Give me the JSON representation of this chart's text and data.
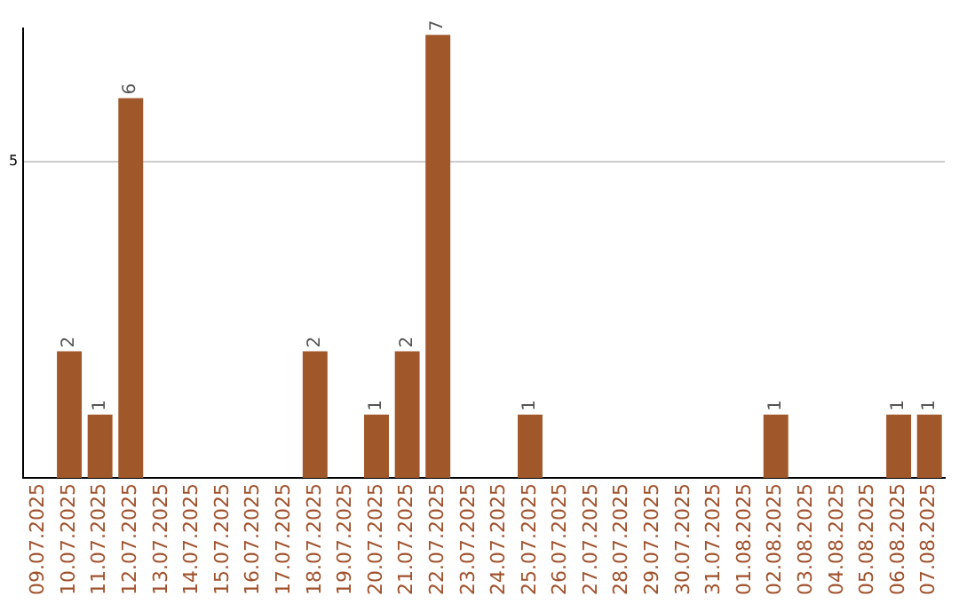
{
  "chart_data": {
    "type": "bar",
    "categories": [
      "09.07.2025",
      "10.07.2025",
      "11.07.2025",
      "12.07.2025",
      "13.07.2025",
      "14.07.2025",
      "15.07.2025",
      "16.07.2025",
      "17.07.2025",
      "18.07.2025",
      "19.07.2025",
      "20.07.2025",
      "21.07.2025",
      "22.07.2025",
      "23.07.2025",
      "24.07.2025",
      "25.07.2025",
      "26.07.2025",
      "27.07.2025",
      "28.07.2025",
      "29.07.2025",
      "30.07.2025",
      "31.07.2025",
      "01.08.2025",
      "02.08.2025",
      "03.08.2025",
      "04.08.2025",
      "05.08.2025",
      "06.08.2025",
      "07.08.2025"
    ],
    "values": [
      0,
      2,
      1,
      6,
      0,
      0,
      0,
      0,
      0,
      2,
      0,
      1,
      2,
      7,
      0,
      0,
      1,
      0,
      0,
      0,
      0,
      0,
      0,
      0,
      1,
      0,
      0,
      0,
      1,
      1
    ],
    "value_labels": [
      null,
      "2",
      "1",
      "6",
      null,
      null,
      null,
      null,
      null,
      "2",
      null,
      "1",
      "2",
      "7",
      null,
      null,
      "1",
      null,
      null,
      null,
      null,
      null,
      null,
      null,
      "1",
      null,
      null,
      null,
      "1",
      "1"
    ],
    "color": "#a0572a",
    "ylim": [
      0,
      7.1
    ],
    "yticks": [
      5
    ],
    "grid": "y",
    "legend": false
  }
}
